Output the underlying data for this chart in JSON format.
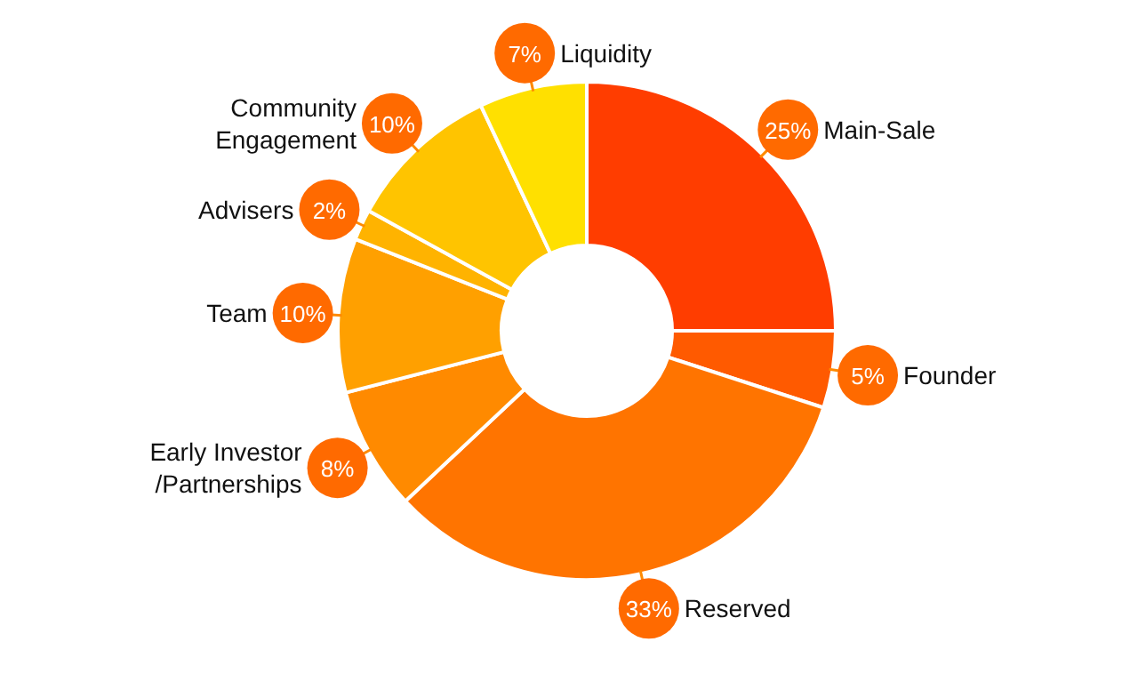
{
  "chart_data": {
    "type": "donut",
    "categories": [
      "Main-Sale",
      "Founder",
      "Reserved",
      "Early Investor /Partnerships",
      "Team",
      "Advisers",
      "Community Engagement",
      "Liquidity"
    ],
    "values": [
      25,
      5,
      33,
      8,
      10,
      2,
      10,
      7
    ],
    "colors": [
      "#ff3d00",
      "#ff5a00",
      "#ff7400",
      "#ff8a00",
      "#ffa000",
      "#ffb300",
      "#ffc400",
      "#ffe000"
    ],
    "value_labels": [
      "25%",
      "5%",
      "33%",
      "8%",
      "10%",
      "2%",
      "10%",
      "7%"
    ]
  }
}
